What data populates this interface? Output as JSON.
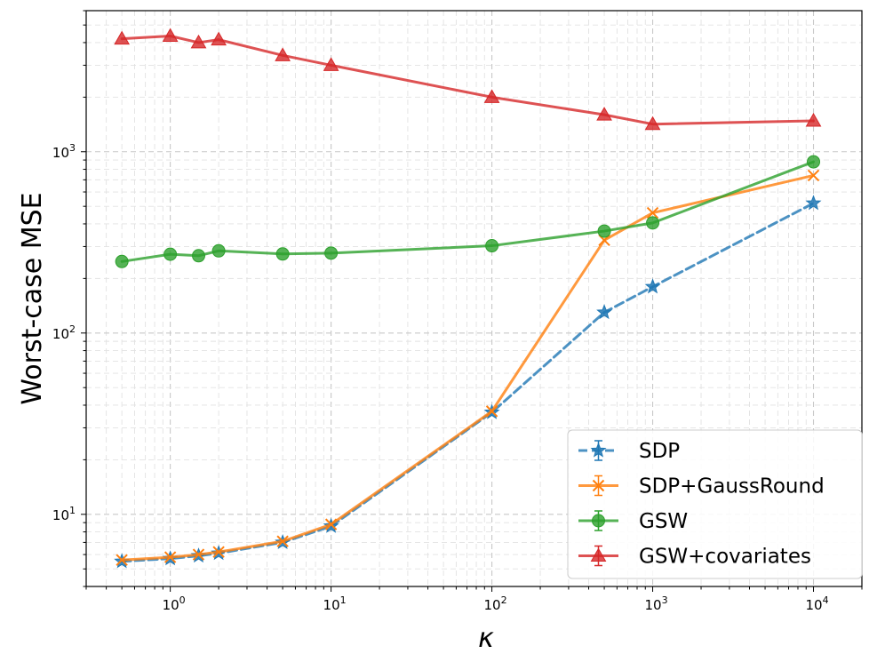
{
  "chart_data": {
    "type": "line",
    "title": "",
    "xlabel": "κ",
    "ylabel": "Worst-case MSE",
    "xscale": "log",
    "yscale": "log",
    "xlim": [
      0.3,
      20000
    ],
    "ylim": [
      4,
      6000
    ],
    "grid": true,
    "legend_position": "lower-right",
    "x": [
      0.5,
      1,
      1.5,
      2,
      5,
      10,
      100,
      500,
      1000,
      10000
    ],
    "x_ticks": [
      {
        "value": 1,
        "base": "10",
        "exp": "0"
      },
      {
        "value": 10,
        "base": "10",
        "exp": "1"
      },
      {
        "value": 100,
        "base": "10",
        "exp": "2"
      },
      {
        "value": 1000,
        "base": "10",
        "exp": "3"
      },
      {
        "value": 10000,
        "base": "10",
        "exp": "4"
      }
    ],
    "y_ticks": [
      {
        "value": 10,
        "base": "10",
        "exp": "1"
      },
      {
        "value": 100,
        "base": "10",
        "exp": "2"
      },
      {
        "value": 1000,
        "base": "10",
        "exp": "3"
      }
    ],
    "series": [
      {
        "name": "SDP",
        "color": "#1f77b4",
        "marker": "star",
        "dash": true,
        "values": [
          5.5,
          5.7,
          5.9,
          6.1,
          7.0,
          8.6,
          36.5,
          130,
          180,
          520
        ]
      },
      {
        "name": "SDP+GaussRound",
        "color": "#ff7f0e",
        "marker": "x",
        "dash": false,
        "values": [
          5.6,
          5.8,
          6.0,
          6.2,
          7.1,
          8.8,
          37,
          325,
          460,
          740
        ]
      },
      {
        "name": "GSW",
        "color": "#2ca02c",
        "marker": "circle",
        "dash": false,
        "values": [
          248,
          272,
          267,
          284,
          273,
          276,
          303,
          365,
          405,
          880
        ]
      },
      {
        "name": "GSW+covariates",
        "color": "#d62728",
        "marker": "triangle",
        "dash": false,
        "values": [
          4200,
          4350,
          4000,
          4150,
          3400,
          3000,
          2000,
          1600,
          1420,
          1480
        ]
      }
    ]
  }
}
